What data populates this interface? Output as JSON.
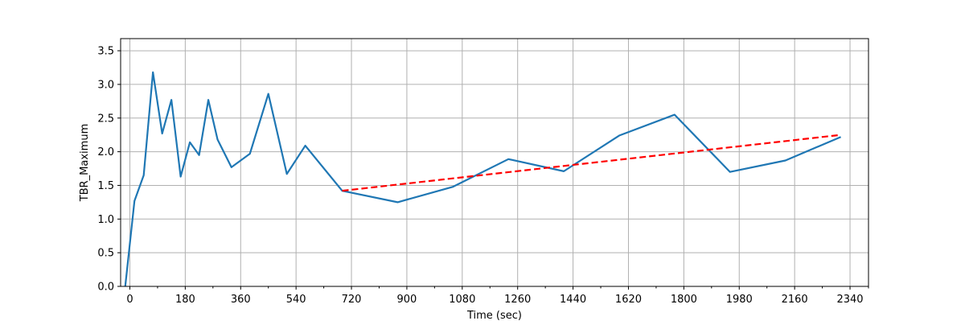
{
  "chart_data": {
    "type": "line",
    "title": "",
    "xlabel": "Time (sec)",
    "ylabel": "TBR_Maximum",
    "xlim": [
      -30,
      2400
    ],
    "ylim": [
      0,
      3.68
    ],
    "x_ticks": [
      0,
      180,
      360,
      540,
      720,
      900,
      1080,
      1260,
      1440,
      1620,
      1800,
      1980,
      2160,
      2340
    ],
    "x_tick_labels": [
      "0",
      "180",
      "360",
      "540",
      "720",
      "900",
      "1080",
      "1260",
      "1440",
      "1620",
      "1800",
      "1980",
      "2160",
      "2340"
    ],
    "x_minor_ticks": [
      90,
      270,
      450,
      630,
      810,
      990,
      1170,
      1350,
      1530,
      1710,
      1890,
      2070,
      2250,
      2400
    ],
    "y_ticks": [
      0,
      0.5,
      1.0,
      1.5,
      2.0,
      2.5,
      3.0,
      3.5
    ],
    "y_tick_labels": [
      "0.0",
      "0.5",
      "1.0",
      "1.5",
      "2.0",
      "2.5",
      "3.0",
      "3.5"
    ],
    "grid": true,
    "legend": "none",
    "series": [
      {
        "style": "solid",
        "color": "#1f77b4",
        "x": [
          -15,
          15,
          45,
          75,
          105,
          135,
          165,
          195,
          225,
          255,
          285,
          330,
          390,
          450,
          510,
          570,
          690,
          870,
          1050,
          1230,
          1410,
          1590,
          1770,
          1950,
          2130,
          2310
        ],
        "y": [
          0.0,
          1.27,
          1.65,
          3.18,
          2.27,
          2.77,
          1.63,
          2.14,
          1.95,
          2.77,
          2.18,
          1.77,
          1.97,
          2.86,
          1.67,
          2.09,
          1.42,
          1.25,
          1.48,
          1.89,
          1.71,
          2.24,
          2.55,
          1.7,
          1.87,
          2.22
        ]
      },
      {
        "style": "dashed",
        "color": "#ff0000",
        "x": [
          690,
          2310
        ],
        "y": [
          1.42,
          2.25
        ]
      }
    ]
  }
}
